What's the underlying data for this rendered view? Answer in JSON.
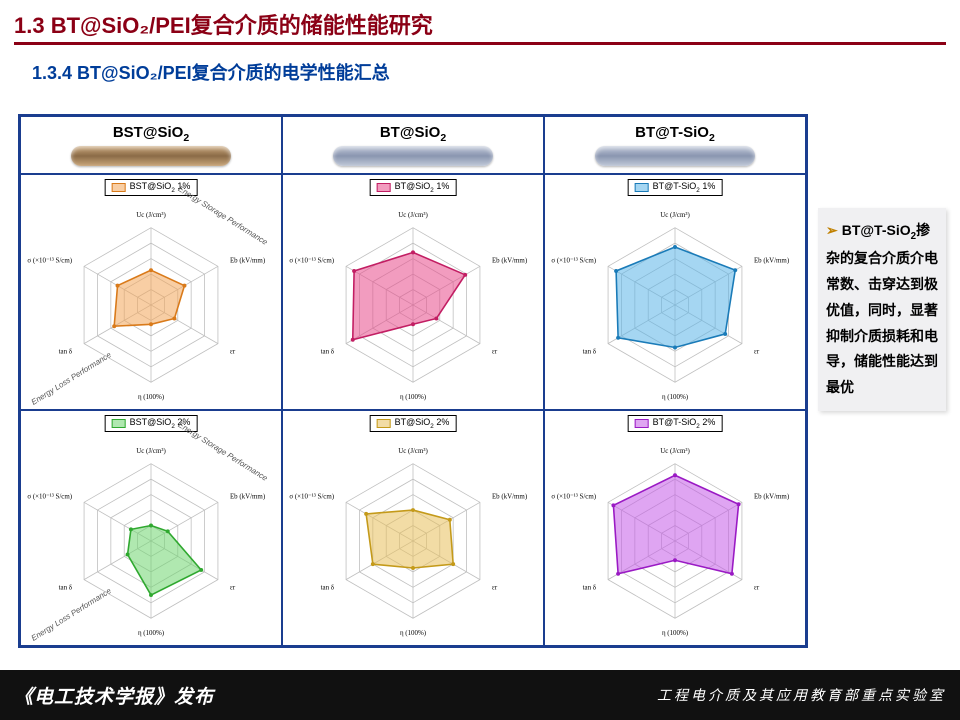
{
  "title": {
    "main": "1.3 BT@SiO₂/PEI复合介质的储能性能研究",
    "sub": "1.3.4 BT@SiO₂/PEI复合介质的电学性能汇总"
  },
  "headers": [
    {
      "label": "BST@SiO₂",
      "pill_color": "linear-gradient(180deg,#c9a67a,#8b6b47,#c9a67a)"
    },
    {
      "label": "BT@SiO₂",
      "pill_color": "linear-gradient(180deg,#c0c8d8,#8a96b0,#c0c8d8)"
    },
    {
      "label": "BT@T-SiO₂",
      "pill_color": "linear-gradient(180deg,#c0c8d8,#8a96b0,#c0c8d8)"
    }
  ],
  "axes": [
    "Uc (J/cm³)",
    "Eb (kV/mm)",
    "εr",
    "η (100%)",
    "tan δ",
    "σ (×10⁻¹³ S/cm)"
  ],
  "axis_ticks": {
    "Uc": [
      8,
      10,
      12,
      14
    ],
    "Eb": [
      250,
      300,
      350,
      400
    ],
    "er": [
      3.6,
      4.0,
      4.4,
      4.8
    ],
    "eta": [
      5,
      6,
      7,
      8
    ],
    "tand": [
      0.005,
      0.007,
      0.011,
      0.015
    ],
    "sigma": [
      1.4,
      1.8,
      2.2,
      2.6
    ]
  },
  "arc_labels": {
    "top": "Energy Storage Performance",
    "bottom": "Energy Loss Performance"
  },
  "charts": [
    {
      "legend": "BST@SiO₂ 1%",
      "fill": "#f2a65a",
      "fill_rgba": "rgba(242,166,90,0.55)",
      "stroke": "#d97a1a",
      "values": [
        0.45,
        0.5,
        0.35,
        0.25,
        0.55,
        0.5
      ]
    },
    {
      "legend": "BT@SiO₂ 1%",
      "fill": "#e84b8a",
      "fill_rgba": "rgba(232,75,138,0.55)",
      "stroke": "#c21e63",
      "values": [
        0.68,
        0.78,
        0.35,
        0.25,
        0.9,
        0.88
      ]
    },
    {
      "legend": "BT@T-SiO₂ 1%",
      "fill": "#5bb5e8",
      "fill_rgba": "rgba(91,181,232,0.55)",
      "stroke": "#1a7bb8",
      "values": [
        0.75,
        0.9,
        0.75,
        0.55,
        0.85,
        0.88
      ]
    },
    {
      "legend": "BST@SiO₂ 2%",
      "fill": "#6fd66f",
      "fill_rgba": "rgba(111,214,111,0.55)",
      "stroke": "#2fa82f",
      "values": [
        0.2,
        0.25,
        0.75,
        0.7,
        0.35,
        0.3
      ]
    },
    {
      "legend": "BT@SiO₂ 2%",
      "fill": "#e8c05b",
      "fill_rgba": "rgba(232,192,91,0.55)",
      "stroke": "#c49a1a",
      "values": [
        0.4,
        0.55,
        0.6,
        0.35,
        0.6,
        0.7
      ]
    },
    {
      "legend": "BT@T-SiO₂ 2%",
      "fill": "#c45be8",
      "fill_rgba": "rgba(196,91,232,0.55)",
      "stroke": "#9a1ac4",
      "values": [
        0.85,
        0.95,
        0.85,
        0.25,
        0.85,
        0.92
      ]
    }
  ],
  "sidenote": {
    "bullet": "➢",
    "text_html": "BT@T-SiO₂掺杂的复合介质介电常数、击穿达到极优值，同时，显著抑制介质损耗和电导，储能性能达到最优"
  },
  "footer": {
    "left": "《电工技术学报》发布",
    "right": "工程电介质及其应用教育部重点实验室"
  },
  "grid_color": "#bfbfbf",
  "hex_levels": 5
}
